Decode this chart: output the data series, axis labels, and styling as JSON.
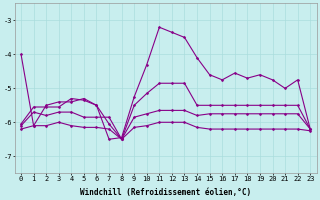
{
  "xlabel": "Windchill (Refroidissement éolien,°C)",
  "background_color": "#c8eeee",
  "grid_color": "#aadddd",
  "line_color": "#880088",
  "ylim": [
    -7.5,
    -2.5
  ],
  "xlim": [
    -0.5,
    23.5
  ],
  "yticks": [
    -7,
    -6,
    -5,
    -4,
    -3
  ],
  "xticks": [
    0,
    1,
    2,
    3,
    4,
    5,
    6,
    7,
    8,
    9,
    10,
    11,
    12,
    13,
    14,
    15,
    16,
    17,
    18,
    19,
    20,
    21,
    22,
    23
  ],
  "series": [
    [
      -4.0,
      -6.1,
      -5.5,
      -5.4,
      -5.4,
      -5.3,
      -5.5,
      -6.5,
      -6.45,
      -5.25,
      -4.3,
      -3.2,
      -3.35,
      -3.5,
      -4.1,
      -4.6,
      -4.75,
      -4.55,
      -4.7,
      -4.6,
      -4.75,
      -5.0,
      -4.75,
      -6.2
    ],
    [
      -6.05,
      -5.55,
      -5.55,
      -5.55,
      -5.3,
      -5.35,
      -5.5,
      -6.05,
      -6.5,
      -5.5,
      -5.15,
      -4.85,
      -4.85,
      -4.85,
      -5.5,
      -5.5,
      -5.5,
      -5.5,
      -5.5,
      -5.5,
      -5.5,
      -5.5,
      -5.5,
      -6.2
    ],
    [
      -6.1,
      -5.7,
      -5.8,
      -5.7,
      -5.7,
      -5.85,
      -5.85,
      -5.85,
      -6.5,
      -5.85,
      -5.75,
      -5.65,
      -5.65,
      -5.65,
      -5.8,
      -5.75,
      -5.75,
      -5.75,
      -5.75,
      -5.75,
      -5.75,
      -5.75,
      -5.75,
      -6.2
    ],
    [
      -6.2,
      -6.1,
      -6.1,
      -6.0,
      -6.1,
      -6.15,
      -6.15,
      -6.2,
      -6.5,
      -6.15,
      -6.1,
      -6.0,
      -6.0,
      -6.0,
      -6.15,
      -6.2,
      -6.2,
      -6.2,
      -6.2,
      -6.2,
      -6.2,
      -6.2,
      -6.2,
      -6.25
    ]
  ],
  "figsize": [
    3.2,
    2.0
  ],
  "dpi": 100,
  "label_fontsize": 5.5,
  "tick_fontsize": 5.0,
  "marker": "D",
  "markersize": 1.5,
  "linewidth": 0.8
}
